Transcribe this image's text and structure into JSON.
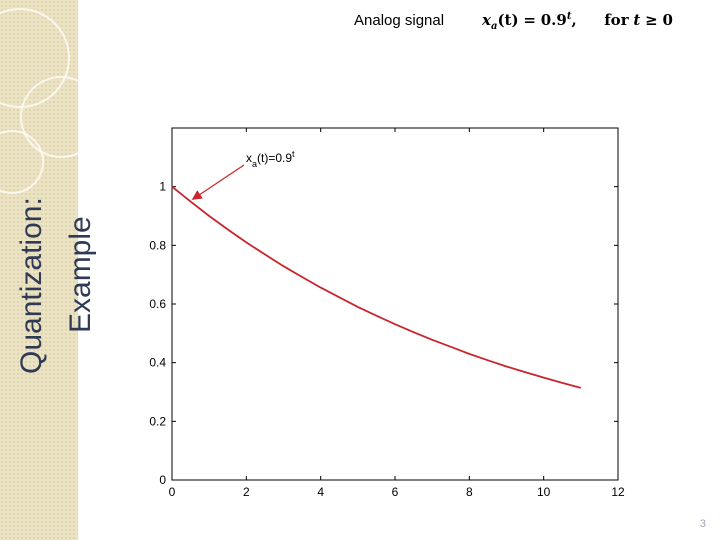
{
  "slide": {
    "title_line1": "Quantization:",
    "title_line2": "Example",
    "header_label": "Analog signal",
    "formula": {
      "lhs_var": "x",
      "lhs_sub": "a",
      "lhs_arg": "(t)",
      "equals": "=",
      "base": "0.9",
      "exponent": "t",
      "comma": ",",
      "condition_word": "for",
      "condition_var": "t",
      "condition_op": "≥",
      "condition_value": "0"
    },
    "page_number": "3"
  },
  "chart_data": {
    "type": "line",
    "function": "0.9^t",
    "x": [
      0,
      0.5,
      1,
      1.5,
      2,
      2.5,
      3,
      3.5,
      4,
      4.5,
      5,
      5.5,
      6,
      6.5,
      7,
      7.5,
      8,
      8.5,
      9,
      9.5,
      10,
      10.5,
      11
    ],
    "series": [
      {
        "color": "#c8262c",
        "values": [
          1.0,
          0.949,
          0.9,
          0.854,
          0.81,
          0.769,
          0.729,
          0.692,
          0.656,
          0.623,
          0.59,
          0.56,
          0.531,
          0.504,
          0.478,
          0.454,
          0.43,
          0.408,
          0.387,
          0.368,
          0.349,
          0.331,
          0.314
        ]
      }
    ],
    "xlim": [
      0,
      12
    ],
    "ylim": [
      0,
      1.2
    ],
    "x_ticks": [
      0,
      2,
      4,
      6,
      8,
      10,
      12
    ],
    "y_ticks": [
      0,
      0.2,
      0.4,
      0.6,
      0.8,
      1
    ],
    "x_tick_labels": [
      "0",
      "2",
      "4",
      "6",
      "8",
      "10",
      "12"
    ],
    "y_tick_labels": [
      "0",
      "0.2",
      "0.4",
      "0.6",
      "0.8",
      "1"
    ],
    "grid": false,
    "annotation": {
      "text_main": "x",
      "text_sub": "a",
      "text_rest": "(t)=0.9",
      "text_sup": "t",
      "arrow_target": {
        "x": 0.5,
        "y": 0.95
      },
      "color": "#c8262c"
    }
  }
}
